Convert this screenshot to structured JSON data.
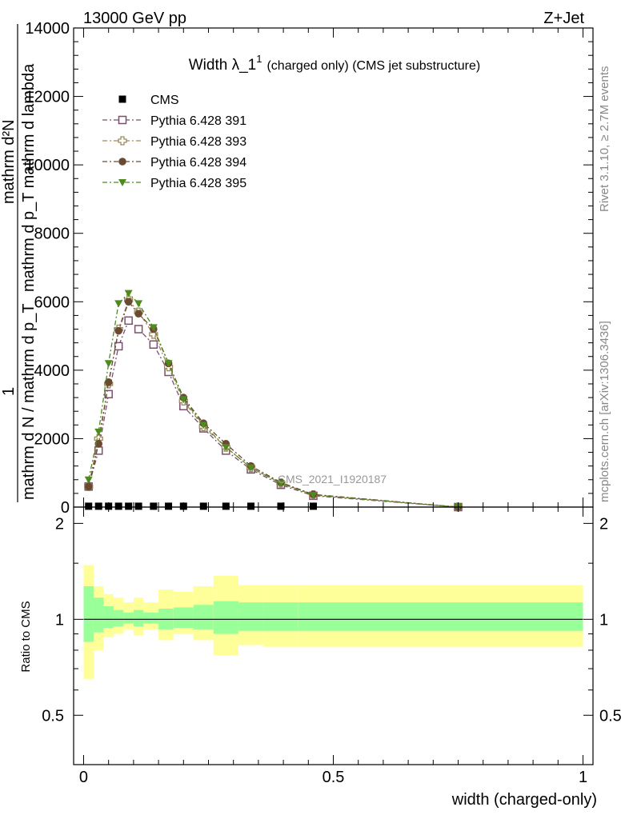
{
  "header": {
    "left": "13000 GeV pp",
    "right": "Z+Jet"
  },
  "side_labels": {
    "rivet": "Rivet 3.1.10, ≥ 2.7M events",
    "mcplots": "mcplots.cern.ch [arXiv:1306.3436]"
  },
  "watermark": "CMS_2021_I1920187",
  "ylabel_main": {
    "top": "mathrm d²N",
    "mid": "mathrm d p_T mathrm d lambda",
    "num": "1",
    "den": "mathrm d N / mathrm d p_T"
  },
  "colors": {
    "cms": "#000000",
    "p391": "#7b4f6e",
    "p393": "#9c8a58",
    "p394": "#6b4a32",
    "p395": "#4e8a1e",
    "band_yellow": "#ffff99",
    "band_green": "#99ff99"
  },
  "chart_data": [
    {
      "type": "line",
      "title": "Width λ_1¹ (charged only) (CMS jet substructure)",
      "title_main": "Width λ_1",
      "title_sup": "1",
      "title_rest": "(charged only) (CMS jet substructure)",
      "xlabel": "",
      "xlim": [
        -0.02,
        1.02
      ],
      "ylim": [
        0,
        14000
      ],
      "yticks": [
        0,
        2000,
        4000,
        6000,
        8000,
        10000,
        12000,
        14000
      ],
      "ytick_labels": [
        "0",
        "2000",
        "4000",
        "6000",
        "8000",
        "10000",
        "12000",
        "14000"
      ],
      "legend_position": "top-left",
      "series": [
        {
          "name": "CMS",
          "marker": "square-filled",
          "x": [
            0.01,
            0.03,
            0.05,
            0.07,
            0.09,
            0.11,
            0.14,
            0.17,
            0.2,
            0.24,
            0.285,
            0.335,
            0.395,
            0.46
          ],
          "values": [
            25,
            25,
            25,
            25,
            25,
            25,
            25,
            25,
            25,
            25,
            25,
            25,
            25,
            25
          ]
        },
        {
          "name": "Pythia 6.428 391",
          "marker": "square-open",
          "x": [
            0.01,
            0.03,
            0.05,
            0.07,
            0.09,
            0.11,
            0.14,
            0.17,
            0.2,
            0.24,
            0.285,
            0.335,
            0.395,
            0.46,
            0.75
          ],
          "values": [
            600,
            1650,
            3300,
            4700,
            5450,
            5200,
            4750,
            3950,
            2950,
            2300,
            1650,
            1100,
            650,
            330,
            0
          ]
        },
        {
          "name": "Pythia 6.428 393",
          "marker": "cross-open",
          "x": [
            0.01,
            0.03,
            0.05,
            0.07,
            0.09,
            0.11,
            0.14,
            0.17,
            0.2,
            0.24,
            0.285,
            0.335,
            0.395,
            0.46,
            0.75
          ],
          "values": [
            600,
            2000,
            3600,
            5200,
            6050,
            5700,
            5050,
            4100,
            3100,
            2350,
            1750,
            1150,
            700,
            360,
            0
          ]
        },
        {
          "name": "Pythia 6.428 394",
          "marker": "circle-filled",
          "x": [
            0.01,
            0.03,
            0.05,
            0.07,
            0.09,
            0.11,
            0.14,
            0.17,
            0.2,
            0.24,
            0.285,
            0.335,
            0.395,
            0.46,
            0.75
          ],
          "values": [
            600,
            1850,
            3650,
            5150,
            6000,
            5650,
            5200,
            4200,
            3200,
            2450,
            1850,
            1200,
            720,
            370,
            0
          ]
        },
        {
          "name": "Pythia 6.428 395",
          "marker": "triangle-down-filled",
          "x": [
            0.01,
            0.03,
            0.05,
            0.07,
            0.09,
            0.11,
            0.14,
            0.17,
            0.2,
            0.24,
            0.285,
            0.335,
            0.395,
            0.46,
            0.75
          ],
          "values": [
            800,
            2200,
            4200,
            5950,
            6250,
            5950,
            5250,
            4200,
            3150,
            2400,
            1750,
            1150,
            690,
            350,
            0
          ]
        }
      ]
    },
    {
      "type": "area",
      "title": "",
      "xlabel": "width (charged-only)",
      "ylabel": "Ratio to CMS",
      "xlim": [
        -0.02,
        1.02
      ],
      "ylim": [
        0.35,
        2.25
      ],
      "yticks": [
        0.5,
        1,
        2
      ],
      "ytick_labels": [
        "0.5",
        "1",
        "2"
      ],
      "xticks": [
        0,
        0.5,
        1
      ],
      "xtick_labels": [
        "0",
        "0.5",
        "1"
      ],
      "bin_edges": [
        0.0,
        0.02,
        0.04,
        0.06,
        0.08,
        0.1,
        0.12,
        0.15,
        0.18,
        0.22,
        0.26,
        0.31,
        0.36,
        0.43,
        0.5,
        1.0
      ],
      "band_total_low": [
        0.65,
        0.8,
        0.88,
        0.9,
        0.93,
        0.89,
        0.93,
        0.86,
        0.9,
        0.86,
        0.77,
        0.83,
        0.82,
        0.82,
        0.82
      ],
      "band_total_high": [
        1.48,
        1.27,
        1.2,
        1.17,
        1.13,
        1.17,
        1.13,
        1.24,
        1.22,
        1.27,
        1.37,
        1.28,
        1.28,
        1.28,
        1.28
      ],
      "band_stat_low": [
        0.85,
        0.91,
        0.94,
        0.95,
        0.97,
        0.95,
        0.97,
        0.93,
        0.94,
        0.93,
        0.9,
        0.92,
        0.92,
        0.92,
        0.92
      ],
      "band_stat_high": [
        1.27,
        1.17,
        1.1,
        1.07,
        1.05,
        1.07,
        1.05,
        1.08,
        1.09,
        1.11,
        1.14,
        1.13,
        1.13,
        1.13,
        1.13
      ],
      "reference_line": 1
    }
  ]
}
